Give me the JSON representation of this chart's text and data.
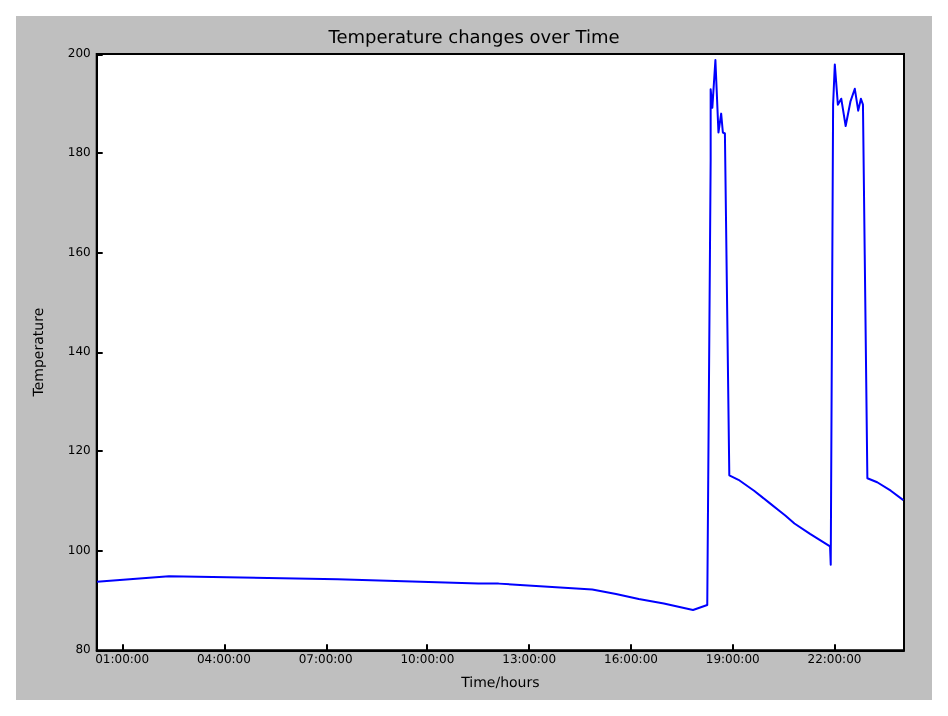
{
  "chart_data": {
    "type": "line",
    "title": "Temperature changes over Time",
    "xlabel": "Time/hours",
    "ylabel": "Temperature",
    "x": [
      0.26,
      2.38,
      7.35,
      11.5,
      12.1,
      14.86,
      15.56,
      16.23,
      16.97,
      17.83,
      18.25,
      18.35,
      18.35,
      18.4,
      18.49,
      18.58,
      18.66,
      18.71,
      18.77,
      18.9,
      19.17,
      19.63,
      20.09,
      20.55,
      20.82,
      21.28,
      21.87,
      21.89,
      21.96,
      22.01,
      22.1,
      22.2,
      22.33,
      22.47,
      22.6,
      22.7,
      22.78,
      22.84,
      22.97,
      23.26,
      23.66,
      24.03
    ],
    "series": [
      {
        "color": "#0000ff",
        "values": [
          93.8,
          94.9,
          94.3,
          93.4,
          93.4,
          92.2,
          91.3,
          90.3,
          89.4,
          88.1,
          89.1,
          178.6,
          192.9,
          189.2,
          198.8,
          184.2,
          188,
          184.2,
          184,
          115.2,
          114.3,
          112.1,
          109.6,
          107.1,
          105.5,
          103.4,
          100.9,
          97.2,
          189.8,
          197.9,
          189.8,
          191,
          185.5,
          190.4,
          193,
          188.6,
          191,
          189.8,
          114.6,
          113.8,
          112.1,
          110.2
        ]
      }
    ],
    "xlim": [
      0.25,
      24.05
    ],
    "xticks": [
      {
        "value": 1,
        "label": "01:00:00"
      },
      {
        "value": 4,
        "label": "04:00:00"
      },
      {
        "value": 7,
        "label": "07:00:00"
      },
      {
        "value": 10,
        "label": "10:00:00"
      },
      {
        "value": 13,
        "label": "13:00:00"
      },
      {
        "value": 16,
        "label": "16:00:00"
      },
      {
        "value": 19,
        "label": "19:00:00"
      },
      {
        "value": 22,
        "label": "22:00:00"
      }
    ],
    "ylim": [
      80,
      200
    ],
    "yticks": [
      80,
      100,
      120,
      140,
      160,
      180,
      200
    ],
    "grid": false
  }
}
